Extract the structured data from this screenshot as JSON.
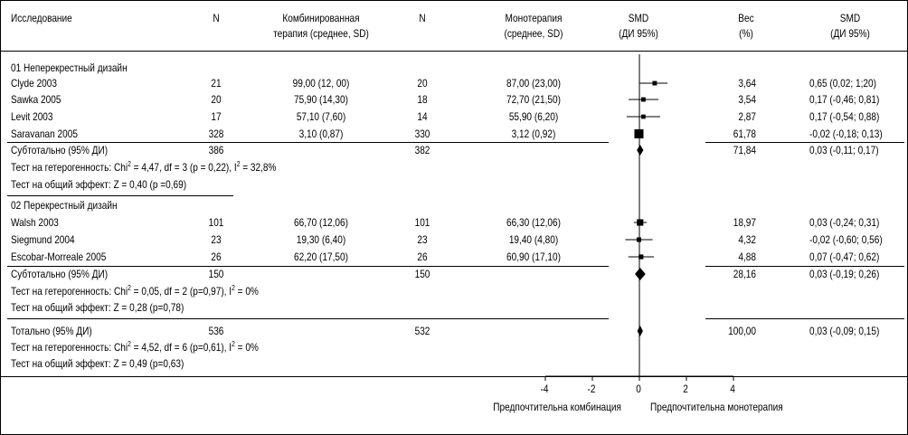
{
  "header": {
    "study": "Исследование",
    "n1": "N",
    "combo": [
      "Комбинированная",
      "терапия (среднее, SD)"
    ],
    "n2": "N",
    "mono": [
      "Монотерапия",
      "(среднее, SD)"
    ],
    "smd": [
      "SMD",
      "(ДИ 95%)"
    ],
    "weight": [
      "Вес",
      "(%)"
    ],
    "smd2": [
      "SMD",
      "(ДИ 95%)"
    ]
  },
  "chart_data": {
    "type": "forest",
    "xaxis": {
      "range": [
        -4,
        4
      ],
      "ticks": [
        -4,
        -2,
        0,
        2,
        4
      ],
      "tick_labels": [
        "-4",
        "-2",
        "0",
        "2",
        "4"
      ],
      "left_label": "Предпочтительна комбинация",
      "right_label": "Предпочтительна монотерапия"
    },
    "groups": [
      {
        "title": "01 Неперекрестный дизайн",
        "studies": [
          {
            "name": "Clyde 2003",
            "n1": "21",
            "combo": "99,00 (12, 00)",
            "n2": "20",
            "mono": "87,00 (23,00)",
            "weight": "3,64",
            "ci_text": "0,65 (0,02; 1;20)",
            "est": 0.65,
            "lo": 0.02,
            "hi": 1.2
          },
          {
            "name": "Sawka 2005",
            "n1": "20",
            "combo": "75,90 (14,30)",
            "n2": "18",
            "mono": "72,70 (21,50)",
            "weight": "3,54",
            "ci_text": "0,17 (-0,46; 0,81)",
            "est": 0.17,
            "lo": -0.46,
            "hi": 0.81
          },
          {
            "name": "Levit 2003",
            "n1": "17",
            "combo": "57,10 (7,60)",
            "n2": "14",
            "mono": "55,90 (6,20)",
            "weight": "2,87",
            "ci_text": "0,17 (-0,54; 0,88)",
            "est": 0.17,
            "lo": -0.54,
            "hi": 0.88
          },
          {
            "name": "Saravanan 2005",
            "n1": "328",
            "combo": "3,10 (0,87)",
            "n2": "330",
            "mono": "3,12 (0,92)",
            "weight": "61,78",
            "ci_text": "-0,02 (-0,18; 0,13)",
            "est": -0.02,
            "lo": -0.18,
            "hi": 0.13
          }
        ],
        "subtotal": {
          "label": "Субтотально (95% ДИ)",
          "n1": "386",
          "n2": "382",
          "weight": "71,84",
          "ci_text": "0,03 (-0,11; 0,17)",
          "est": 0.03,
          "lo": -0.11,
          "hi": 0.17
        },
        "het": [
          "Тест на гетерогенность: Chi",
          "2",
          " = 4,47, df = 3 (p = 0,22), I",
          "2",
          " = 32,8%"
        ],
        "overall": "Тест на общий эффект: Z = 0,40 (p =0,69)"
      },
      {
        "title": "02 Перекрестный дизайн",
        "studies": [
          {
            "name": "Walsh 2003",
            "n1": "101",
            "combo": "66,70 (12,06)",
            "n2": "101",
            "mono": "66,30 (12,06)",
            "weight": "18,97",
            "ci_text": "0,03 (-0,24; 0,31)",
            "est": 0.03,
            "lo": -0.24,
            "hi": 0.31
          },
          {
            "name": "Siegmund 2004",
            "n1": "23",
            "combo": "19,30 (6,40)",
            "n2": "23",
            "mono": "19,40 (4,80)",
            "weight": "4,32",
            "ci_text": "-0,02 (-0,60; 0,56)",
            "est": -0.02,
            "lo": -0.6,
            "hi": 0.56
          },
          {
            "name": "Escobar-Morreale 2005",
            "n1": "26",
            "combo": "62,20 (17,50)",
            "n2": "26",
            "mono": "60,90 (17,10)",
            "weight": "4,88",
            "ci_text": "0,07 (-0,47; 0,62)",
            "est": 0.07,
            "lo": -0.47,
            "hi": 0.62
          }
        ],
        "subtotal": {
          "label": "Субтотально (95% ДИ)",
          "n1": "150",
          "n2": "150",
          "weight": "28,16",
          "ci_text": "0,03 (-0,19; 0,26)",
          "est": 0.03,
          "lo": -0.19,
          "hi": 0.26
        },
        "het": [
          "Тест на гетерогенность: Chi",
          "2",
          " = 0,05, df = 2 (p=0,97), I",
          "2",
          " = 0%"
        ],
        "overall": "Тест на общий эффект: Z = 0,28 (p=0,78)"
      }
    ],
    "total": {
      "label": "Тотально (95% ДИ)",
      "n1": "536",
      "n2": "532",
      "weight": "100,00",
      "ci_text": "0,03 (-0,09; 0,15)",
      "est": 0.03,
      "lo": -0.09,
      "hi": 0.15
    },
    "total_het": [
      "Тест на гетерогенность: Chi",
      "2",
      " = 4,52, df = 6 (p=0,61), I",
      "2",
      " = 0%"
    ],
    "total_overall": "Тест на общий эффект: Z = 0,49 (p=0,63)"
  }
}
